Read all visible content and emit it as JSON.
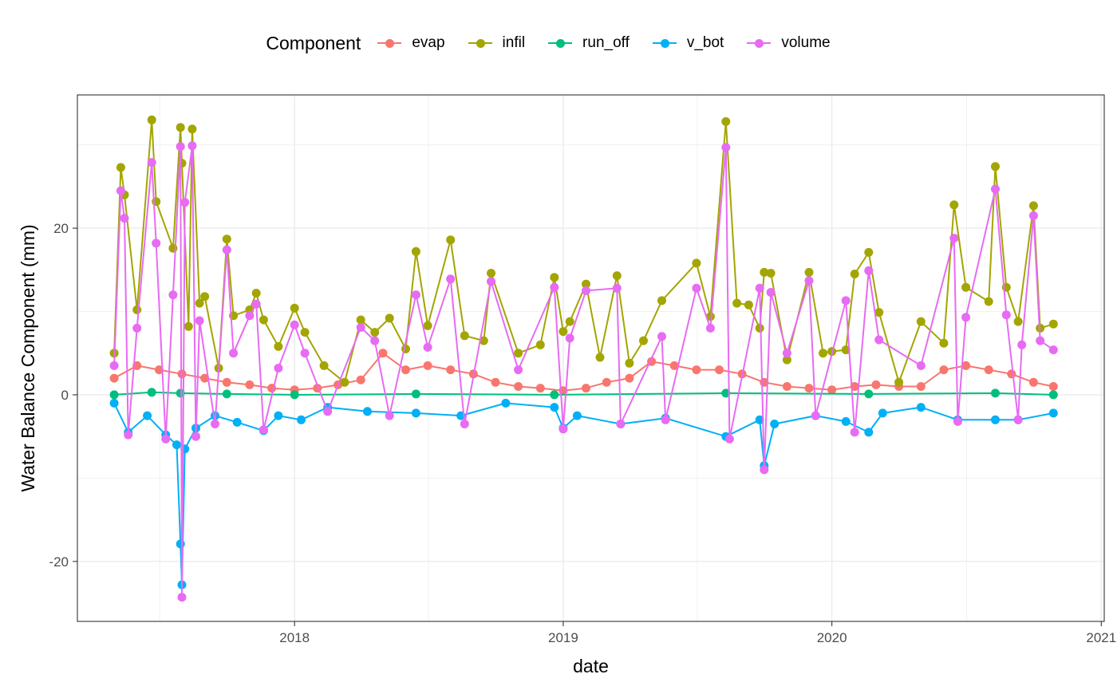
{
  "chart_data": {
    "type": "line",
    "xlabel": "date",
    "ylabel": "Water Balance Component (mm)",
    "xlim": [
      "2017-03-12",
      "2021-01-05"
    ],
    "ylim": [
      -27.2,
      36.0
    ],
    "x_ticks": [
      {
        "label": "2018",
        "date": "2018-01-01"
      },
      {
        "label": "2019",
        "date": "2019-01-01"
      },
      {
        "label": "2020",
        "date": "2020-01-01"
      },
      {
        "label": "2021",
        "date": "2021-01-01"
      }
    ],
    "y_ticks": [
      -20,
      0,
      20
    ],
    "grid": true,
    "legend": {
      "title": "Component",
      "position": "top",
      "entries": [
        "evap",
        "infil",
        "run_off",
        "v_bot",
        "volume"
      ]
    },
    "series": [
      {
        "name": "evap",
        "color": "#F8766D",
        "points": [
          [
            "2017-05-01",
            2.0
          ],
          [
            "2017-06-01",
            3.5
          ],
          [
            "2017-07-01",
            3.0
          ],
          [
            "2017-08-01",
            2.5
          ],
          [
            "2017-09-01",
            2.0
          ],
          [
            "2017-10-01",
            1.5
          ],
          [
            "2017-11-01",
            1.2
          ],
          [
            "2017-12-01",
            0.8
          ],
          [
            "2018-01-01",
            0.6
          ],
          [
            "2018-02-01",
            0.8
          ],
          [
            "2018-03-01",
            1.2
          ],
          [
            "2018-04-01",
            1.8
          ],
          [
            "2018-05-01",
            5.0
          ],
          [
            "2018-06-01",
            3.0
          ],
          [
            "2018-07-01",
            3.5
          ],
          [
            "2018-08-01",
            3.0
          ],
          [
            "2018-09-01",
            2.5
          ],
          [
            "2018-10-01",
            1.5
          ],
          [
            "2018-11-01",
            1.0
          ],
          [
            "2018-12-01",
            0.8
          ],
          [
            "2019-01-01",
            0.5
          ],
          [
            "2019-02-01",
            0.8
          ],
          [
            "2019-03-01",
            1.5
          ],
          [
            "2019-04-01",
            2.0
          ],
          [
            "2019-05-01",
            4.0
          ],
          [
            "2019-06-01",
            3.5
          ],
          [
            "2019-07-01",
            3.0
          ],
          [
            "2019-08-01",
            3.0
          ],
          [
            "2019-09-01",
            2.5
          ],
          [
            "2019-10-01",
            1.5
          ],
          [
            "2019-11-01",
            1.0
          ],
          [
            "2019-12-01",
            0.8
          ],
          [
            "2020-01-01",
            0.6
          ],
          [
            "2020-02-01",
            1.0
          ],
          [
            "2020-03-01",
            1.2
          ],
          [
            "2020-04-01",
            1.0
          ],
          [
            "2020-05-01",
            1.0
          ],
          [
            "2020-06-01",
            3.0
          ],
          [
            "2020-07-01",
            3.5
          ],
          [
            "2020-08-01",
            3.0
          ],
          [
            "2020-09-01",
            2.5
          ],
          [
            "2020-10-01",
            1.5
          ],
          [
            "2020-10-28",
            1.0
          ]
        ]
      },
      {
        "name": "infil",
        "color": "#A3A500",
        "points": [
          [
            "2017-05-01",
            5.0
          ],
          [
            "2017-05-10",
            27.3
          ],
          [
            "2017-05-15",
            24.0
          ],
          [
            "2017-06-01",
            10.2
          ],
          [
            "2017-06-21",
            33.0
          ],
          [
            "2017-06-27",
            23.2
          ],
          [
            "2017-07-20",
            17.6
          ],
          [
            "2017-07-30",
            32.1
          ],
          [
            "2017-08-01",
            27.8
          ],
          [
            "2017-08-10",
            8.2
          ],
          [
            "2017-08-15",
            31.9
          ],
          [
            "2017-08-25",
            11.0
          ],
          [
            "2017-09-01",
            11.8
          ],
          [
            "2017-09-20",
            3.2
          ],
          [
            "2017-10-01",
            18.7
          ],
          [
            "2017-10-10",
            9.5
          ],
          [
            "2017-11-01",
            10.2
          ],
          [
            "2017-11-10",
            12.2
          ],
          [
            "2017-11-20",
            9.0
          ],
          [
            "2017-12-10",
            5.8
          ],
          [
            "2018-01-01",
            10.4
          ],
          [
            "2018-01-15",
            7.5
          ],
          [
            "2018-02-10",
            3.5
          ],
          [
            "2018-03-10",
            1.5
          ],
          [
            "2018-04-01",
            9.0
          ],
          [
            "2018-04-20",
            7.5
          ],
          [
            "2018-05-10",
            9.2
          ],
          [
            "2018-06-01",
            5.5
          ],
          [
            "2018-06-15",
            17.2
          ],
          [
            "2018-07-01",
            8.3
          ],
          [
            "2018-08-01",
            18.6
          ],
          [
            "2018-08-20",
            7.1
          ],
          [
            "2018-09-15",
            6.5
          ],
          [
            "2018-09-25",
            14.6
          ],
          [
            "2018-11-01",
            5.0
          ],
          [
            "2018-12-01",
            6.0
          ],
          [
            "2018-12-20",
            14.1
          ],
          [
            "2019-01-01",
            7.6
          ],
          [
            "2019-01-10",
            8.8
          ],
          [
            "2019-02-01",
            13.3
          ],
          [
            "2019-02-20",
            4.5
          ],
          [
            "2019-03-15",
            14.3
          ],
          [
            "2019-04-01",
            3.8
          ],
          [
            "2019-04-20",
            6.5
          ],
          [
            "2019-05-15",
            11.3
          ],
          [
            "2019-07-01",
            15.8
          ],
          [
            "2019-07-20",
            9.4
          ],
          [
            "2019-08-10",
            32.8
          ],
          [
            "2019-08-25",
            11.0
          ],
          [
            "2019-09-10",
            10.8
          ],
          [
            "2019-09-25",
            8.0
          ],
          [
            "2019-10-01",
            14.7
          ],
          [
            "2019-10-10",
            14.6
          ],
          [
            "2019-11-01",
            4.2
          ],
          [
            "2019-12-01",
            14.7
          ],
          [
            "2019-12-20",
            5.0
          ],
          [
            "2020-01-01",
            5.2
          ],
          [
            "2020-01-20",
            5.4
          ],
          [
            "2020-02-01",
            14.5
          ],
          [
            "2020-02-20",
            17.1
          ],
          [
            "2020-03-05",
            9.9
          ],
          [
            "2020-04-01",
            1.5
          ],
          [
            "2020-05-01",
            8.8
          ],
          [
            "2020-06-01",
            6.2
          ],
          [
            "2020-06-15",
            22.8
          ],
          [
            "2020-07-01",
            12.9
          ],
          [
            "2020-08-01",
            11.2
          ],
          [
            "2020-08-10",
            27.4
          ],
          [
            "2020-08-25",
            12.9
          ],
          [
            "2020-09-10",
            8.8
          ],
          [
            "2020-10-01",
            22.7
          ],
          [
            "2020-10-10",
            8.0
          ],
          [
            "2020-10-28",
            8.5
          ]
        ]
      },
      {
        "name": "run_off",
        "color": "#00BF7D",
        "points": [
          [
            "2017-05-01",
            0.0
          ],
          [
            "2017-06-21",
            0.3
          ],
          [
            "2017-07-30",
            0.2
          ],
          [
            "2017-10-01",
            0.1
          ],
          [
            "2018-01-01",
            0.0
          ],
          [
            "2018-06-15",
            0.1
          ],
          [
            "2018-12-20",
            0.0
          ],
          [
            "2019-08-10",
            0.2
          ],
          [
            "2020-02-20",
            0.1
          ],
          [
            "2020-08-10",
            0.2
          ],
          [
            "2020-10-28",
            0.0
          ]
        ]
      },
      {
        "name": "v_bot",
        "color": "#00B0F6",
        "points": [
          [
            "2017-05-01",
            -1.0
          ],
          [
            "2017-05-20",
            -4.5
          ],
          [
            "2017-06-15",
            -2.5
          ],
          [
            "2017-07-10",
            -4.8
          ],
          [
            "2017-07-25",
            -6.0
          ],
          [
            "2017-07-30",
            -17.9
          ],
          [
            "2017-08-01",
            -22.8
          ],
          [
            "2017-08-05",
            -6.5
          ],
          [
            "2017-08-20",
            -4.0
          ],
          [
            "2017-09-15",
            -2.5
          ],
          [
            "2017-10-15",
            -3.3
          ],
          [
            "2017-11-20",
            -4.3
          ],
          [
            "2017-12-10",
            -2.5
          ],
          [
            "2018-01-10",
            -3.0
          ],
          [
            "2018-02-15",
            -1.5
          ],
          [
            "2018-04-10",
            -2.0
          ],
          [
            "2018-06-15",
            -2.2
          ],
          [
            "2018-08-15",
            -2.5
          ],
          [
            "2018-10-15",
            -1.0
          ],
          [
            "2018-12-20",
            -1.5
          ],
          [
            "2019-01-01",
            -4.0
          ],
          [
            "2019-01-20",
            -2.5
          ],
          [
            "2019-03-20",
            -3.5
          ],
          [
            "2019-05-20",
            -2.8
          ],
          [
            "2019-08-10",
            -5.0
          ],
          [
            "2019-09-25",
            -3.0
          ],
          [
            "2019-10-01",
            -8.5
          ],
          [
            "2019-10-15",
            -3.5
          ],
          [
            "2019-12-10",
            -2.5
          ],
          [
            "2020-01-20",
            -3.2
          ],
          [
            "2020-02-20",
            -4.5
          ],
          [
            "2020-03-10",
            -2.2
          ],
          [
            "2020-05-01",
            -1.5
          ],
          [
            "2020-06-20",
            -3.0
          ],
          [
            "2020-08-10",
            -3.0
          ],
          [
            "2020-09-10",
            -3.0
          ],
          [
            "2020-10-28",
            -2.2
          ]
        ]
      },
      {
        "name": "volume",
        "color": "#E76BF3",
        "points": [
          [
            "2017-05-01",
            3.5
          ],
          [
            "2017-05-10",
            24.5
          ],
          [
            "2017-05-15",
            21.2
          ],
          [
            "2017-05-20",
            -4.8
          ],
          [
            "2017-06-01",
            8.0
          ],
          [
            "2017-06-21",
            27.9
          ],
          [
            "2017-06-27",
            18.2
          ],
          [
            "2017-07-10",
            -5.3
          ],
          [
            "2017-07-20",
            12.0
          ],
          [
            "2017-07-30",
            29.8
          ],
          [
            "2017-08-01",
            -24.3
          ],
          [
            "2017-08-05",
            23.1
          ],
          [
            "2017-08-15",
            29.9
          ],
          [
            "2017-08-20",
            -5.0
          ],
          [
            "2017-08-25",
            8.9
          ],
          [
            "2017-09-15",
            -3.5
          ],
          [
            "2017-10-01",
            17.4
          ],
          [
            "2017-10-10",
            5.0
          ],
          [
            "2017-11-01",
            9.5
          ],
          [
            "2017-11-10",
            10.9
          ],
          [
            "2017-11-20",
            -4.2
          ],
          [
            "2017-12-10",
            3.2
          ],
          [
            "2018-01-01",
            8.4
          ],
          [
            "2018-01-15",
            5.0
          ],
          [
            "2018-02-15",
            -2.0
          ],
          [
            "2018-04-01",
            8.1
          ],
          [
            "2018-04-20",
            6.5
          ],
          [
            "2018-05-10",
            -2.5
          ],
          [
            "2018-06-15",
            12.0
          ],
          [
            "2018-07-01",
            5.7
          ],
          [
            "2018-08-01",
            13.9
          ],
          [
            "2018-08-20",
            -3.5
          ],
          [
            "2018-09-25",
            13.6
          ],
          [
            "2018-11-01",
            3.0
          ],
          [
            "2018-12-20",
            12.9
          ],
          [
            "2019-01-01",
            -4.1
          ],
          [
            "2019-01-10",
            6.8
          ],
          [
            "2019-02-01",
            12.5
          ],
          [
            "2019-03-15",
            12.8
          ],
          [
            "2019-03-20",
            -3.5
          ],
          [
            "2019-05-15",
            7.0
          ],
          [
            "2019-05-20",
            -3.0
          ],
          [
            "2019-07-01",
            12.8
          ],
          [
            "2019-07-20",
            8.0
          ],
          [
            "2019-08-10",
            29.7
          ],
          [
            "2019-08-15",
            -5.3
          ],
          [
            "2019-09-25",
            12.8
          ],
          [
            "2019-10-01",
            -9.0
          ],
          [
            "2019-10-10",
            12.3
          ],
          [
            "2019-11-01",
            5.0
          ],
          [
            "2019-12-01",
            13.7
          ],
          [
            "2019-12-10",
            -2.5
          ],
          [
            "2020-01-20",
            11.3
          ],
          [
            "2020-02-01",
            -4.5
          ],
          [
            "2020-02-20",
            14.9
          ],
          [
            "2020-03-05",
            6.6
          ],
          [
            "2020-05-01",
            3.5
          ],
          [
            "2020-06-15",
            18.8
          ],
          [
            "2020-06-20",
            -3.2
          ],
          [
            "2020-07-01",
            9.3
          ],
          [
            "2020-08-10",
            24.7
          ],
          [
            "2020-08-25",
            9.6
          ],
          [
            "2020-09-10",
            -3.0
          ],
          [
            "2020-09-15",
            6.0
          ],
          [
            "2020-10-01",
            21.5
          ],
          [
            "2020-10-10",
            6.5
          ],
          [
            "2020-10-28",
            5.4
          ]
        ]
      }
    ]
  }
}
